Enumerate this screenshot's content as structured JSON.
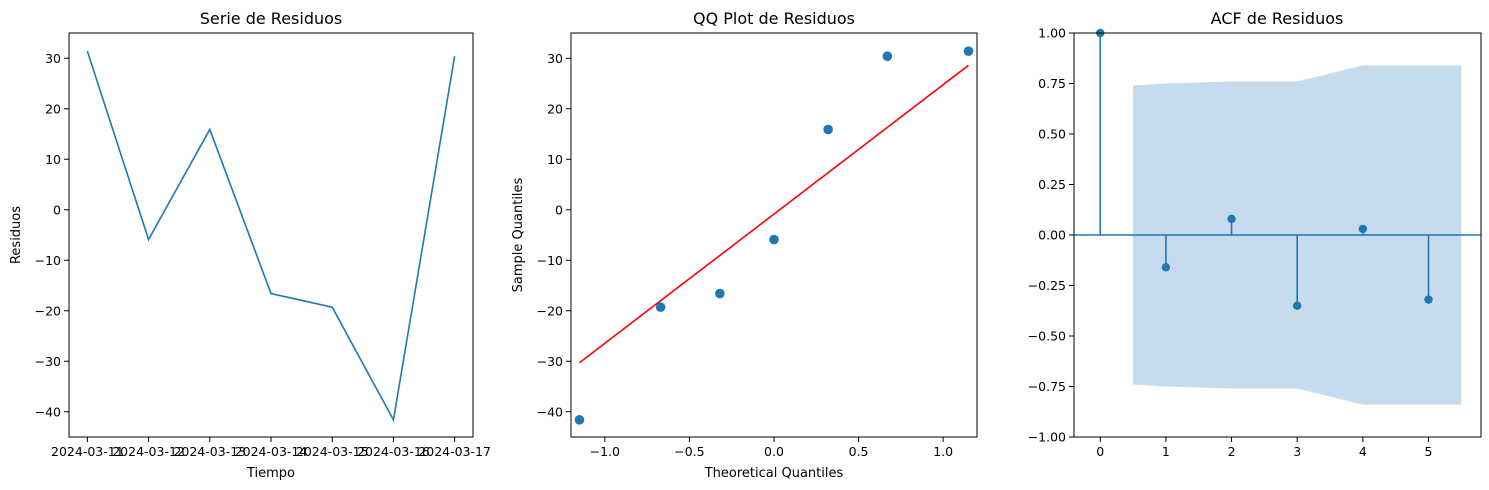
{
  "chart_data": [
    {
      "type": "line",
      "title": "Serie de Residuos",
      "xlabel": "Tiempo",
      "ylabel": "Residuos",
      "categories": [
        "2024-03-11",
        "2024-03-12",
        "2024-03-13",
        "2024-03-14",
        "2024-03-15",
        "2024-03-16",
        "2024-03-17"
      ],
      "values": [
        31.4,
        -5.9,
        15.9,
        -16.6,
        -19.3,
        -41.6,
        30.4
      ],
      "ylim": [
        -45,
        35
      ],
      "yticks": [
        30,
        20,
        10,
        0,
        -10,
        -20,
        -30,
        -40
      ],
      "ytick_labels": [
        "30",
        "20",
        "10",
        "0",
        "−10",
        "−20",
        "−30",
        "−40"
      ],
      "color": "#1f77b4"
    },
    {
      "type": "scatter",
      "title": "QQ Plot de Residuos",
      "xlabel": "Theoretical Quantiles",
      "ylabel": "Sample Quantiles",
      "x": [
        -1.15,
        -0.67,
        -0.32,
        0.0,
        0.32,
        0.67,
        1.15
      ],
      "y": [
        -41.6,
        -19.3,
        -16.6,
        -5.9,
        15.9,
        30.4,
        31.4
      ],
      "reference_line": {
        "x": [
          -1.15,
          1.15
        ],
        "y": [
          -30.3,
          28.6
        ],
        "color": "#ff0000"
      },
      "xlim": [
        -1.2,
        1.2
      ],
      "ylim": [
        -45,
        35
      ],
      "xticks": [
        -1.0,
        -0.5,
        0.0,
        0.5,
        1.0
      ],
      "xtick_labels": [
        "−1.0",
        "−0.5",
        "0.0",
        "0.5",
        "1.0"
      ],
      "yticks": [
        30,
        20,
        10,
        0,
        -10,
        -20,
        -30,
        -40
      ],
      "ytick_labels": [
        "30",
        "20",
        "10",
        "0",
        "−10",
        "−20",
        "−30",
        "−40"
      ],
      "color": "#1f77b4"
    },
    {
      "type": "stem",
      "title": "ACF de Residuos",
      "lags": [
        0,
        1,
        2,
        3,
        4,
        5
      ],
      "values": [
        1.0,
        -0.16,
        0.08,
        -0.35,
        0.03,
        -0.32
      ],
      "confidence_band": {
        "x": [
          0.5,
          1,
          2,
          3,
          4,
          5,
          5.5
        ],
        "upper": [
          0.74,
          0.75,
          0.76,
          0.76,
          0.84,
          0.84,
          0.84
        ]
      },
      "xlim": [
        -0.4,
        5.8
      ],
      "ylim": [
        -1.0,
        1.0
      ],
      "xticks": [
        0,
        1,
        2,
        3,
        4,
        5
      ],
      "xtick_labels": [
        "0",
        "1",
        "2",
        "3",
        "4",
        "5"
      ],
      "yticks": [
        1.0,
        0.75,
        0.5,
        0.25,
        0.0,
        -0.25,
        -0.5,
        -0.75,
        -1.0
      ],
      "ytick_labels": [
        "1.00",
        "0.75",
        "0.50",
        "0.25",
        "0.00",
        "−0.25",
        "−0.50",
        "−0.75",
        "−1.00"
      ],
      "color": "#1f77b4",
      "band_color": "#c6dbed"
    }
  ]
}
